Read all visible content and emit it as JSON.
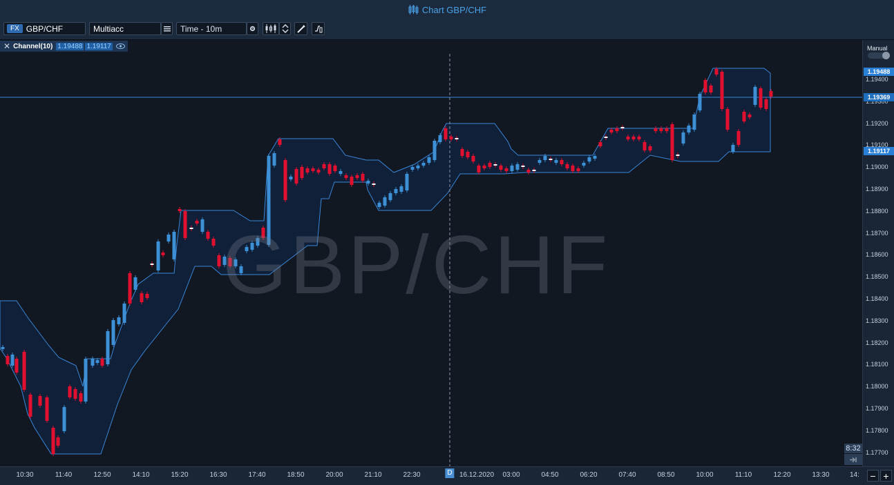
{
  "window": {
    "title": "Chart GBP/CHF"
  },
  "toolbar": {
    "instrument_badge": "FX",
    "instrument": "GBP/CHF",
    "account": "Multiacc",
    "timeframe": "Time - 10m",
    "icons": [
      "menu-icon",
      "settings-icon",
      "candle-type-icon",
      "up-down-icon",
      "pencil-icon",
      "indicator-icon"
    ]
  },
  "indicator": {
    "name": "Channel(10)",
    "upper": "1.19488",
    "lower": "1.19117"
  },
  "watermark": "GBP/CHF",
  "right_panel": {
    "mode_label": "Manual",
    "countdown": "8:32"
  },
  "price_axis": {
    "ticks": [
      "1.19400",
      "1.19300",
      "1.19200",
      "1.19100",
      "1.19000",
      "1.18900",
      "1.18800",
      "1.18700",
      "1.18600",
      "1.18500",
      "1.18400",
      "1.18300",
      "1.18200",
      "1.18100",
      "1.18000",
      "1.17900",
      "1.17800",
      "1.17700"
    ],
    "tags": {
      "upper": "1.19488",
      "current": "1.19369",
      "lower": "1.19117"
    }
  },
  "time_axis": {
    "ticks": [
      "10:30",
      "11:40",
      "12:50",
      "14:10",
      "15:20",
      "16:30",
      "17:40",
      "18:50",
      "20:00",
      "21:10",
      "22:30",
      "D",
      "16.12.2020",
      "03:00",
      "04:50",
      "06:20",
      "07:40",
      "08:50",
      "10:00",
      "11:10",
      "12:20",
      "13:30",
      "14:"
    ]
  },
  "zoom": {
    "minus": "−",
    "plus": "+"
  },
  "colors": {
    "up": "#3d8fd6",
    "down": "#e0102e",
    "channel": "#3a86d8",
    "accent": "#4aa3e8"
  }
}
